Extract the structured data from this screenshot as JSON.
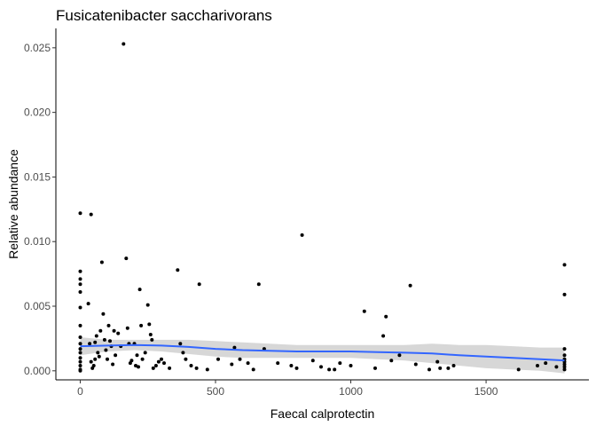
{
  "chart_data": {
    "type": "scatter",
    "title": "Fusicatenibacter saccharivorans",
    "xlabel": "Faecal calprotectin",
    "ylabel": "Relative abundance",
    "xlim": [
      -90,
      1880
    ],
    "ylim": [
      -0.0007,
      0.0265
    ],
    "xticks": [
      0,
      500,
      1000,
      1500
    ],
    "xtick_labels": [
      "0",
      "500",
      "1000",
      "1500"
    ],
    "yticks": [
      0.0,
      0.005,
      0.01,
      0.015,
      0.02,
      0.025
    ],
    "ytick_labels": [
      "0.000",
      "0.005",
      "0.010",
      "0.015",
      "0.020",
      "0.025"
    ],
    "grid": false,
    "legend": "none",
    "colors": {
      "points": "#000000",
      "smooth_line": "#3366FF",
      "ribbon": "#d3d3d3"
    },
    "points": [
      [
        0,
        0.0122
      ],
      [
        0,
        0.0077
      ],
      [
        0,
        0.0071
      ],
      [
        0,
        0.0067
      ],
      [
        0,
        0.0061
      ],
      [
        0,
        0.0049
      ],
      [
        0,
        0.0035
      ],
      [
        0,
        0.0026
      ],
      [
        0,
        0.0021
      ],
      [
        0,
        0.0017
      ],
      [
        0,
        0.0014
      ],
      [
        0,
        0.001
      ],
      [
        0,
        0.0007
      ],
      [
        0,
        0.0004
      ],
      [
        0,
        0.0001
      ],
      [
        0,
        0.0
      ],
      [
        40,
        0.0121
      ],
      [
        30,
        0.0052
      ],
      [
        35,
        0.0021
      ],
      [
        40,
        0.0007
      ],
      [
        45,
        0.0002
      ],
      [
        50,
        0.0004
      ],
      [
        55,
        0.0009
      ],
      [
        55,
        0.0022
      ],
      [
        60,
        0.0027
      ],
      [
        65,
        0.0014
      ],
      [
        70,
        0.0011
      ],
      [
        75,
        0.0031
      ],
      [
        80,
        0.0084
      ],
      [
        85,
        0.0044
      ],
      [
        90,
        0.0024
      ],
      [
        95,
        0.0016
      ],
      [
        100,
        0.0009
      ],
      [
        105,
        0.0035
      ],
      [
        110,
        0.0023
      ],
      [
        115,
        0.0019
      ],
      [
        120,
        0.0005
      ],
      [
        125,
        0.0031
      ],
      [
        130,
        0.0012
      ],
      [
        140,
        0.0029
      ],
      [
        150,
        0.0019
      ],
      [
        160,
        0.0253
      ],
      [
        170,
        0.0087
      ],
      [
        175,
        0.0033
      ],
      [
        180,
        0.0021
      ],
      [
        185,
        0.0006
      ],
      [
        190,
        0.0008
      ],
      [
        200,
        0.0021
      ],
      [
        205,
        0.0004
      ],
      [
        210,
        0.0012
      ],
      [
        215,
        0.0003
      ],
      [
        220,
        0.0063
      ],
      [
        225,
        0.0035
      ],
      [
        230,
        0.0009
      ],
      [
        240,
        0.0014
      ],
      [
        250,
        0.0051
      ],
      [
        255,
        0.0036
      ],
      [
        260,
        0.0028
      ],
      [
        265,
        0.0024
      ],
      [
        270,
        0.0002
      ],
      [
        280,
        0.0004
      ],
      [
        290,
        0.0007
      ],
      [
        300,
        0.0009
      ],
      [
        310,
        0.0006
      ],
      [
        330,
        0.0002
      ],
      [
        360,
        0.0078
      ],
      [
        370,
        0.0021
      ],
      [
        380,
        0.0014
      ],
      [
        390,
        0.0009
      ],
      [
        410,
        0.0004
      ],
      [
        430,
        0.0002
      ],
      [
        440,
        0.0067
      ],
      [
        470,
        0.0001
      ],
      [
        510,
        0.0009
      ],
      [
        560,
        0.0005
      ],
      [
        570,
        0.0018
      ],
      [
        590,
        0.0009
      ],
      [
        620,
        0.0006
      ],
      [
        640,
        0.0001
      ],
      [
        660,
        0.0067
      ],
      [
        680,
        0.0017
      ],
      [
        730,
        0.0006
      ],
      [
        780,
        0.0004
      ],
      [
        800,
        0.0002
      ],
      [
        820,
        0.0105
      ],
      [
        860,
        0.0008
      ],
      [
        890,
        0.0003
      ],
      [
        920,
        0.0001
      ],
      [
        940,
        0.0001
      ],
      [
        960,
        0.0006
      ],
      [
        1000,
        0.0004
      ],
      [
        1050,
        0.0046
      ],
      [
        1090,
        0.0002
      ],
      [
        1120,
        0.0027
      ],
      [
        1130,
        0.0042
      ],
      [
        1150,
        0.0008
      ],
      [
        1180,
        0.0012
      ],
      [
        1220,
        0.0066
      ],
      [
        1240,
        0.0005
      ],
      [
        1290,
        0.0001
      ],
      [
        1320,
        0.0007
      ],
      [
        1330,
        0.0002
      ],
      [
        1360,
        0.0002
      ],
      [
        1380,
        0.0004
      ],
      [
        1620,
        0.0001
      ],
      [
        1690,
        0.0004
      ],
      [
        1720,
        0.0006
      ],
      [
        1760,
        0.0003
      ],
      [
        1790,
        0.0082
      ],
      [
        1790,
        0.0059
      ],
      [
        1790,
        0.0017
      ],
      [
        1790,
        0.0012
      ],
      [
        1790,
        0.0009
      ],
      [
        1790,
        0.0007
      ],
      [
        1790,
        0.0005
      ],
      [
        1790,
        0.0003
      ],
      [
        1790,
        0.0001
      ]
    ],
    "smooth": {
      "x": [
        0,
        100,
        200,
        300,
        400,
        500,
        600,
        700,
        800,
        900,
        1000,
        1100,
        1200,
        1300,
        1400,
        1500,
        1600,
        1700,
        1790
      ],
      "y": [
        0.0019,
        0.00195,
        0.002,
        0.00195,
        0.00185,
        0.0017,
        0.0016,
        0.00155,
        0.0015,
        0.0015,
        0.0015,
        0.00145,
        0.0014,
        0.00135,
        0.0012,
        0.0011,
        0.001,
        0.0009,
        0.0008
      ],
      "lower": [
        0.0012,
        0.0015,
        0.0016,
        0.0015,
        0.0013,
        0.0011,
        0.001,
        0.001,
        0.001,
        0.001,
        0.001,
        0.0009,
        0.0008,
        0.0006,
        0.0004,
        0.0002,
        0.0001,
        0.0,
        -0.0002
      ],
      "upper": [
        0.0026,
        0.0024,
        0.0024,
        0.0024,
        0.0024,
        0.0023,
        0.0022,
        0.0021,
        0.002,
        0.002,
        0.002,
        0.002,
        0.002,
        0.0021,
        0.002,
        0.002,
        0.0019,
        0.0018,
        0.0018
      ]
    }
  }
}
